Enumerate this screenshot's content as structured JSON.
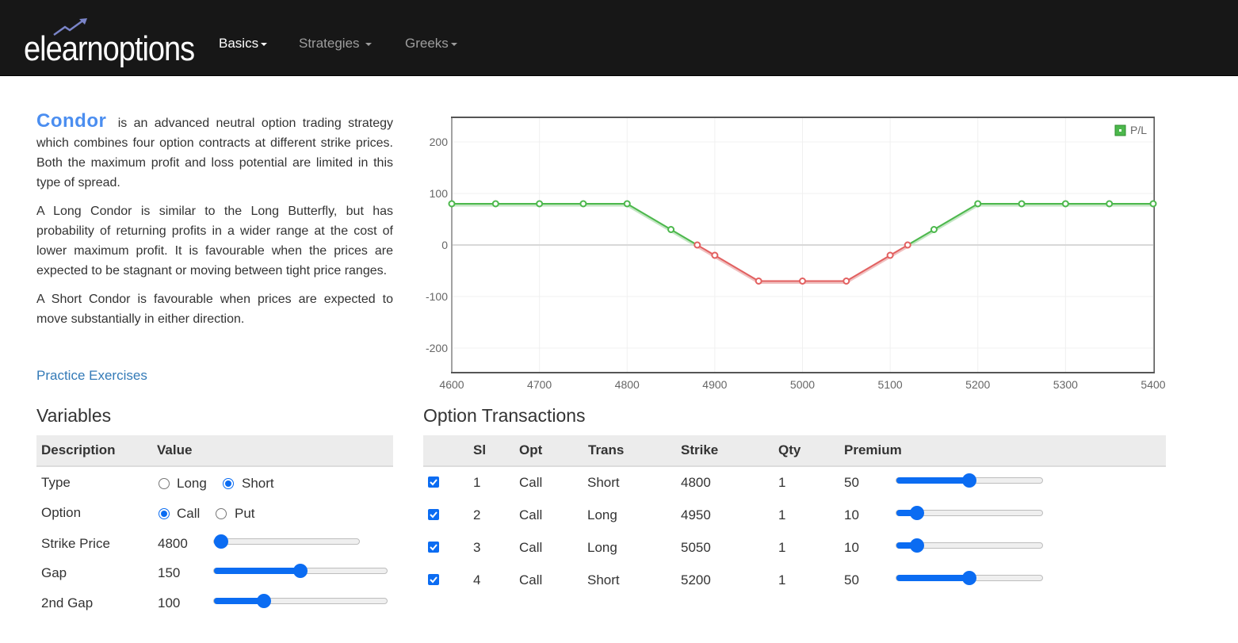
{
  "nav": {
    "logo_text": "elearnoptions",
    "items": [
      {
        "label": "Basics",
        "active": true
      },
      {
        "label": "Strategies",
        "active": false
      },
      {
        "label": "Greeks",
        "active": false
      }
    ]
  },
  "intro": {
    "term": "Condor",
    "p1_rest": "is an advanced neutral option trading strategy which combines four option contracts at different strike prices. Both the maximum profit and loss potential are limited in this type of spread.",
    "p2": "A Long Condor is similar to the Long Butterfly, but has probability of returning profits in a wider range at the cost of lower maximum profit. It is favourable when the prices are expected to be stagnant or moving between tight price ranges.",
    "p3": "A Short Condor is favourable when prices are expected to move substantially in either direction.",
    "practice_link": "Practice Exercises"
  },
  "chart_data": {
    "type": "line",
    "legend": "P/L",
    "legend_position": "top-right",
    "grid": true,
    "xlim": [
      4600,
      5400
    ],
    "ylim": [
      -250,
      250
    ],
    "x_ticks": [
      4600,
      4700,
      4800,
      4900,
      5000,
      5100,
      5200,
      5300,
      5400
    ],
    "y_ticks": [
      200,
      100,
      0,
      -100,
      -200
    ],
    "colors": {
      "positive": "#4cb84c",
      "negative": "#e26060",
      "zero_line": "#d8d8d8"
    },
    "series": [
      {
        "name": "P/L",
        "x": [
          4600,
          4650,
          4700,
          4750,
          4800,
          4850,
          4880,
          4900,
          4950,
          5000,
          5050,
          5100,
          5120,
          5150,
          5200,
          5250,
          5300,
          5350,
          5400
        ],
        "y": [
          80,
          80,
          80,
          80,
          80,
          30,
          0,
          -20,
          -70,
          -70,
          -70,
          -20,
          0,
          30,
          80,
          80,
          80,
          80,
          80
        ]
      }
    ]
  },
  "variables": {
    "title": "Variables",
    "headers": [
      "Description",
      "Value"
    ],
    "type_label": "Type",
    "type_options": [
      "Long",
      "Short"
    ],
    "type_selected": "Short",
    "option_label": "Option",
    "option_options": [
      "Call",
      "Put"
    ],
    "option_selected": "Call",
    "strike_label": "Strike Price",
    "strike_value": "4800",
    "strike_level": 0.0,
    "gap_label": "Gap",
    "gap_value": "150",
    "gap_level": 0.5,
    "gap2_label": "2nd Gap",
    "gap2_value": "100",
    "gap2_level": 0.27
  },
  "transactions": {
    "title": "Option Transactions",
    "headers": [
      "Sl",
      "Opt",
      "Trans",
      "Strike",
      "Qty",
      "Premium"
    ],
    "rows": [
      {
        "checked": true,
        "sl": "1",
        "opt": "Call",
        "trans": "Short",
        "strike": "4800",
        "qty": "1",
        "premium": "50",
        "premium_level": 0.5
      },
      {
        "checked": true,
        "sl": "2",
        "opt": "Call",
        "trans": "Long",
        "strike": "4950",
        "qty": "1",
        "premium": "10",
        "premium_level": 0.1
      },
      {
        "checked": true,
        "sl": "3",
        "opt": "Call",
        "trans": "Long",
        "strike": "5050",
        "qty": "1",
        "premium": "10",
        "premium_level": 0.1
      },
      {
        "checked": true,
        "sl": "4",
        "opt": "Call",
        "trans": "Short",
        "strike": "5200",
        "qty": "1",
        "premium": "50",
        "premium_level": 0.5
      }
    ]
  }
}
